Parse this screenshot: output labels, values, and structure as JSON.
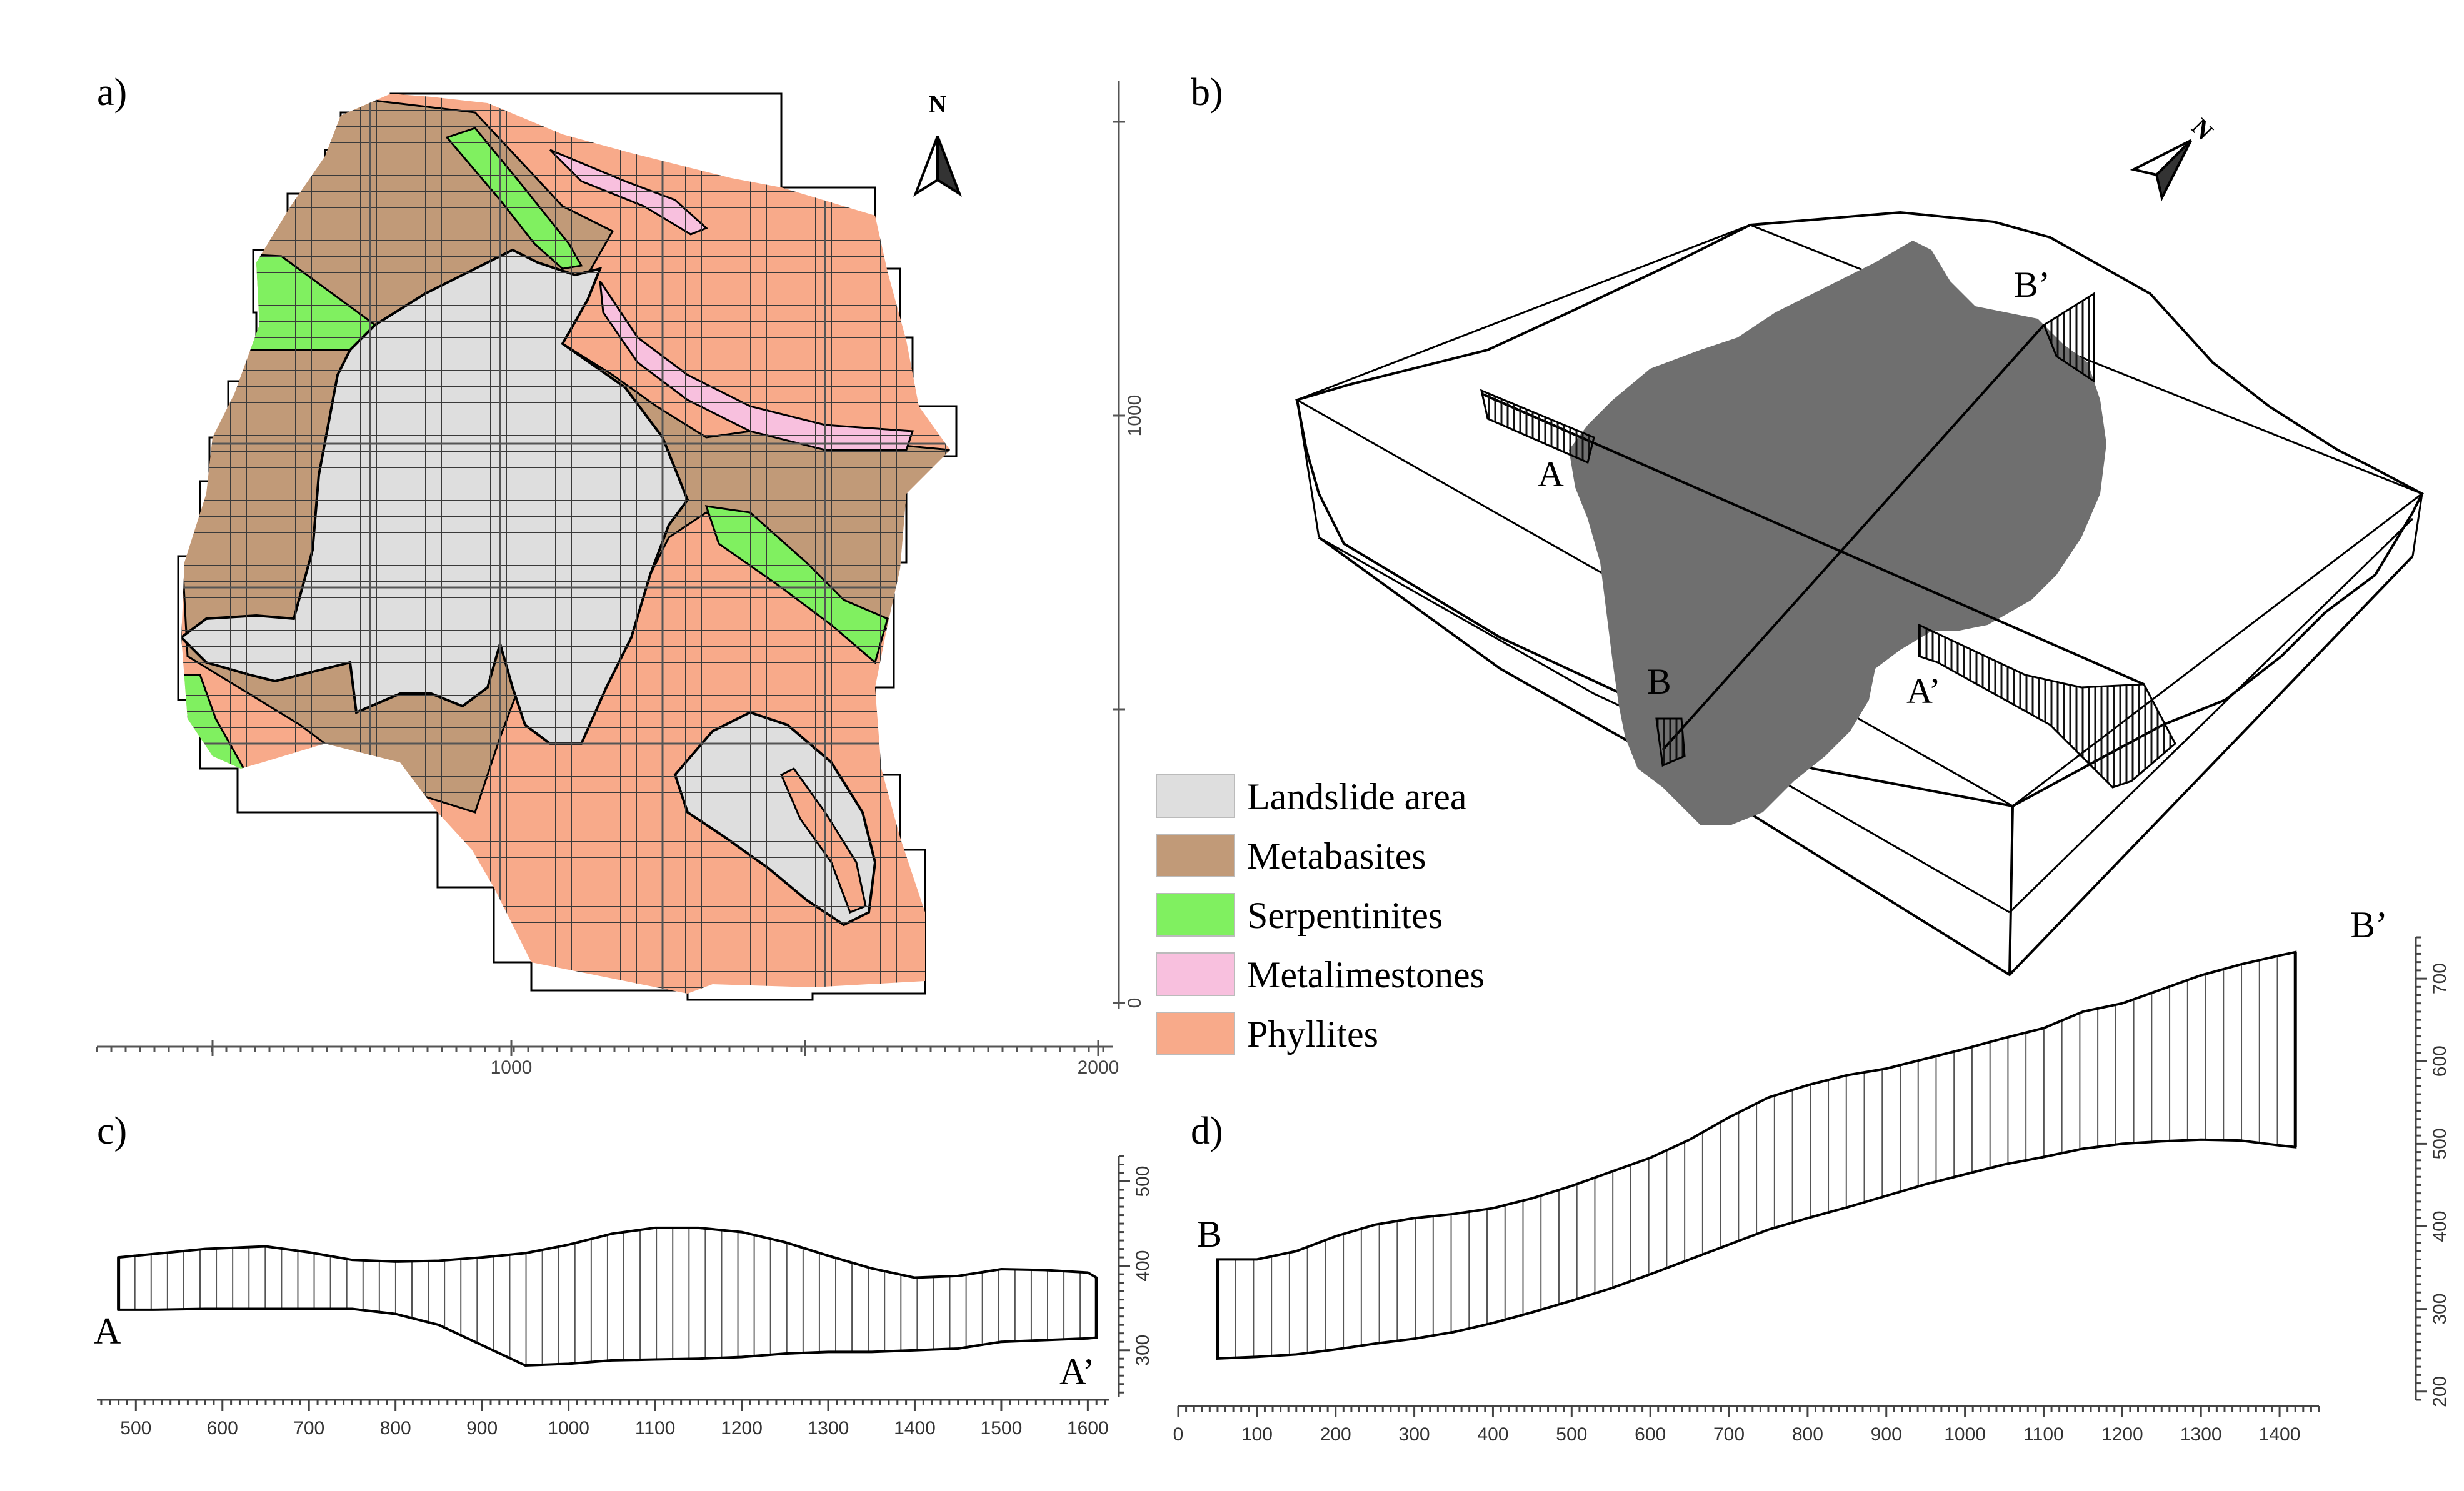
{
  "panels": {
    "a": {
      "label": "a)"
    },
    "b": {
      "label": "b)"
    },
    "c": {
      "label": "c)"
    },
    "d": {
      "label": "d)"
    }
  },
  "north_arrow": {
    "a_label": "N",
    "b_label": "N"
  },
  "map_a": {
    "x_ticks": [
      "1000",
      "2000"
    ],
    "y_ticks": [
      "0",
      "1000"
    ]
  },
  "legend": {
    "items": [
      {
        "label": "Landslide area",
        "color": "#dedede"
      },
      {
        "label": "Metabasites",
        "color": "#c19a78"
      },
      {
        "label": "Serpentinites",
        "color": "#80f060"
      },
      {
        "label": "Metalimestones",
        "color": "#f8c0de"
      },
      {
        "label": "Phyllites",
        "color": "#f8aa8a"
      }
    ]
  },
  "block_b": {
    "labels": {
      "A": "A",
      "A_prime": "A’",
      "B": "B",
      "B_prime": "B’"
    },
    "landslide_color": "#6f6f6f"
  },
  "section_c": {
    "start_label": "A",
    "end_label": "A’",
    "x_ticks": [
      "500",
      "600",
      "700",
      "800",
      "900",
      "1000",
      "1100",
      "1200",
      "1300",
      "1400",
      "1500",
      "1600"
    ],
    "y_ticks": [
      "300",
      "400",
      "500"
    ],
    "x_range": [
      455,
      1625
    ],
    "y_range": [
      245,
      530
    ],
    "profile_x": [
      480,
      520,
      580,
      650,
      700,
      750,
      800,
      850,
      900,
      950,
      1000,
      1050,
      1100,
      1150,
      1200,
      1250,
      1300,
      1350,
      1400,
      1450,
      1500,
      1550,
      1600,
      1610
    ],
    "top_elevation": [
      410,
      414,
      420,
      423,
      416,
      407,
      405,
      406,
      410,
      415,
      425,
      438,
      445,
      445,
      440,
      428,
      412,
      397,
      386,
      388,
      396,
      395,
      392,
      386
    ],
    "base_elevation": [
      348,
      348,
      349,
      349,
      349,
      349,
      343,
      330,
      306,
      282,
      284,
      288,
      289,
      290,
      292,
      296,
      298,
      298,
      300,
      302,
      310,
      312,
      314,
      315
    ]
  },
  "section_d": {
    "start_label": "B",
    "end_label": "B’",
    "x_ticks": [
      "0",
      "100",
      "200",
      "300",
      "400",
      "500",
      "600",
      "700",
      "800",
      "900",
      "1000",
      "1100",
      "1200",
      "1300",
      "1400"
    ],
    "y_ticks": [
      "200",
      "300",
      "400",
      "500",
      "600",
      "700"
    ],
    "x_range": [
      0,
      1450
    ],
    "y_range": [
      190,
      750
    ],
    "profile_x": [
      50,
      100,
      150,
      200,
      250,
      300,
      350,
      400,
      450,
      500,
      550,
      600,
      650,
      700,
      750,
      800,
      850,
      900,
      950,
      1000,
      1050,
      1100,
      1150,
      1200,
      1250,
      1300,
      1350,
      1400,
      1420
    ],
    "top_elevation": [
      360,
      360,
      370,
      388,
      402,
      410,
      415,
      422,
      434,
      449,
      466,
      483,
      505,
      532,
      556,
      571,
      583,
      591,
      603,
      615,
      628,
      640,
      660,
      670,
      687,
      704,
      717,
      728,
      732
    ],
    "base_elevation": [
      240,
      242,
      245,
      251,
      258,
      264,
      272,
      283,
      296,
      310,
      325,
      342,
      360,
      378,
      396,
      410,
      423,
      437,
      451,
      463,
      475,
      484,
      494,
      500,
      503,
      505,
      504,
      498,
      496
    ]
  }
}
